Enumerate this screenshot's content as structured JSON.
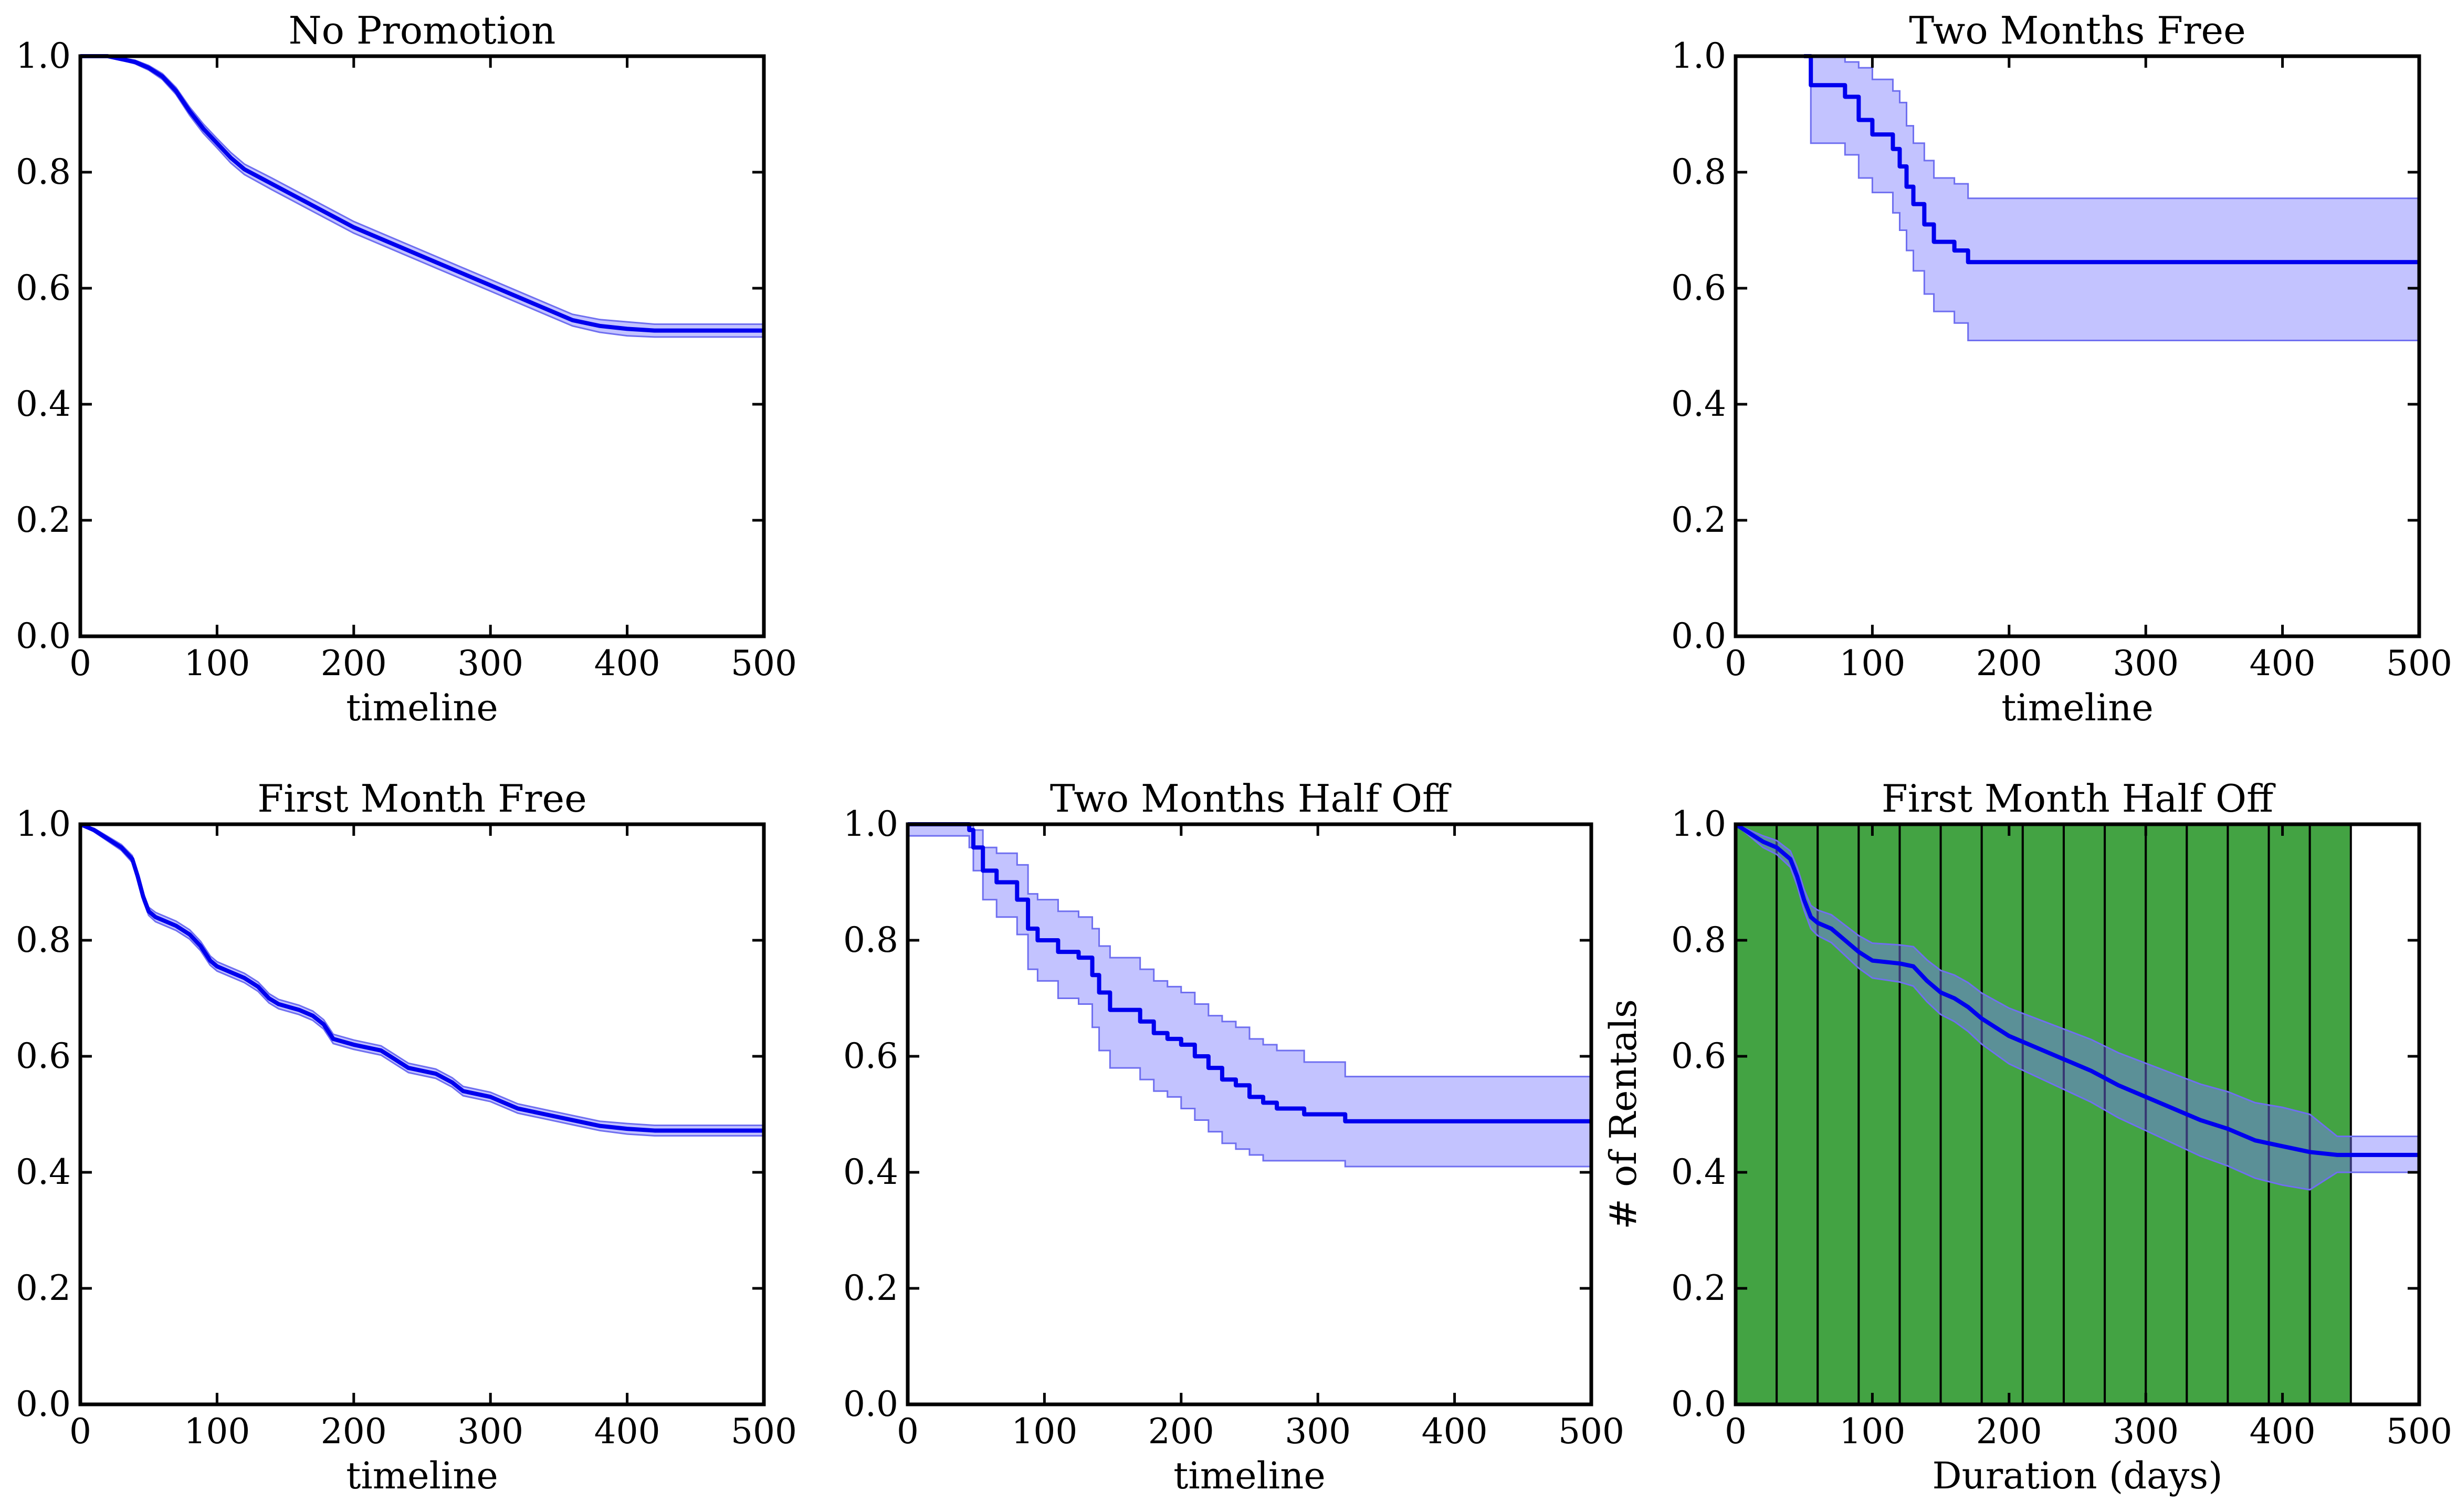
{
  "colors": {
    "line": "#0000ee",
    "band_fill": "#7a7aff",
    "band_opacity": 0.45,
    "band_stroke": "#6f6ff0",
    "bar_fill": "#399e39",
    "bar_opacity": 0.95
  },
  "charts": [
    {
      "id": "no-promotion",
      "title": "No Promotion",
      "xlabel": "timeline",
      "ylabel": "",
      "xlim": [
        0,
        500
      ],
      "ylim": [
        0.0,
        1.0
      ],
      "xticks": [
        "0",
        "100",
        "200",
        "300",
        "400",
        "500"
      ],
      "yticks": [
        "0.0",
        "0.2",
        "0.4",
        "0.6",
        "0.8",
        "1.0"
      ],
      "series": [
        {
          "step": false,
          "x": [
            0,
            20,
            30,
            40,
            50,
            60,
            70,
            80,
            90,
            100,
            110,
            120,
            140,
            160,
            180,
            200,
            220,
            240,
            260,
            280,
            300,
            320,
            340,
            360,
            380,
            400,
            420,
            440,
            460,
            480,
            500
          ],
          "y": [
            1.0,
            1.0,
            0.995,
            0.99,
            0.98,
            0.965,
            0.94,
            0.905,
            0.875,
            0.85,
            0.825,
            0.805,
            0.78,
            0.755,
            0.73,
            0.705,
            0.685,
            0.665,
            0.645,
            0.625,
            0.605,
            0.585,
            0.565,
            0.545,
            0.535,
            0.53,
            0.527,
            0.527,
            0.527,
            0.527,
            0.527
          ],
          "lower": [
            1.0,
            1.0,
            0.993,
            0.987,
            0.976,
            0.96,
            0.934,
            0.898,
            0.867,
            0.842,
            0.816,
            0.796,
            0.77,
            0.745,
            0.72,
            0.695,
            0.675,
            0.655,
            0.635,
            0.615,
            0.595,
            0.575,
            0.555,
            0.535,
            0.524,
            0.518,
            0.516,
            0.516,
            0.516,
            0.516,
            0.516
          ],
          "upper": [
            1.0,
            1.0,
            0.997,
            0.993,
            0.984,
            0.97,
            0.946,
            0.912,
            0.883,
            0.858,
            0.834,
            0.814,
            0.79,
            0.765,
            0.74,
            0.715,
            0.695,
            0.675,
            0.655,
            0.635,
            0.615,
            0.595,
            0.575,
            0.555,
            0.546,
            0.542,
            0.538,
            0.538,
            0.538,
            0.538,
            0.538
          ]
        }
      ]
    },
    {
      "id": "two-months-free",
      "title": "Two Months Free",
      "xlabel": "timeline",
      "ylabel": "",
      "xlim": [
        0,
        500
      ],
      "ylim": [
        0.0,
        1.0
      ],
      "xticks": [
        "0",
        "100",
        "200",
        "300",
        "400",
        "500"
      ],
      "yticks": [
        "0.0",
        "0.2",
        "0.4",
        "0.6",
        "0.8",
        "1.0"
      ],
      "series": [
        {
          "step": true,
          "x": [
            50,
            55,
            80,
            90,
            100,
            115,
            120,
            125,
            130,
            138,
            145,
            160,
            170,
            500
          ],
          "y": [
            1.0,
            0.95,
            0.93,
            0.89,
            0.865,
            0.84,
            0.81,
            0.775,
            0.745,
            0.71,
            0.68,
            0.665,
            0.645,
            0.645
          ],
          "lower": [
            1.0,
            0.85,
            0.83,
            0.79,
            0.765,
            0.73,
            0.7,
            0.665,
            0.63,
            0.59,
            0.56,
            0.54,
            0.51,
            0.51
          ],
          "upper": [
            1.0,
            1.0,
            0.99,
            0.98,
            0.96,
            0.94,
            0.92,
            0.88,
            0.85,
            0.82,
            0.79,
            0.78,
            0.755,
            0.755
          ]
        }
      ]
    },
    {
      "id": "first-month-free",
      "title": "First Month Free",
      "xlabel": "timeline",
      "ylabel": "",
      "xlim": [
        0,
        500
      ],
      "ylim": [
        0.0,
        1.0
      ],
      "xticks": [
        "0",
        "100",
        "200",
        "300",
        "400",
        "500"
      ],
      "yticks": [
        "0.0",
        "0.2",
        "0.4",
        "0.6",
        "0.8",
        "1.0"
      ],
      "series": [
        {
          "step": false,
          "x": [
            0,
            10,
            20,
            30,
            38,
            42,
            46,
            50,
            55,
            60,
            70,
            80,
            88,
            95,
            100,
            110,
            120,
            130,
            138,
            145,
            160,
            170,
            178,
            185,
            200,
            220,
            230,
            240,
            260,
            272,
            280,
            300,
            310,
            320,
            340,
            360,
            380,
            400,
            420,
            440,
            460,
            480,
            500
          ],
          "y": [
            1.0,
            0.99,
            0.975,
            0.96,
            0.94,
            0.91,
            0.875,
            0.85,
            0.84,
            0.835,
            0.825,
            0.81,
            0.79,
            0.765,
            0.755,
            0.745,
            0.735,
            0.72,
            0.7,
            0.69,
            0.68,
            0.67,
            0.655,
            0.63,
            0.62,
            0.61,
            0.595,
            0.58,
            0.57,
            0.555,
            0.54,
            0.53,
            0.52,
            0.51,
            0.5,
            0.49,
            0.48,
            0.475,
            0.472,
            0.472,
            0.472,
            0.472,
            0.472
          ],
          "lower": [
            1.0,
            0.987,
            0.971,
            0.955,
            0.934,
            0.904,
            0.868,
            0.843,
            0.832,
            0.827,
            0.817,
            0.802,
            0.782,
            0.757,
            0.747,
            0.737,
            0.727,
            0.712,
            0.692,
            0.682,
            0.672,
            0.662,
            0.647,
            0.622,
            0.612,
            0.602,
            0.587,
            0.572,
            0.562,
            0.547,
            0.532,
            0.522,
            0.512,
            0.502,
            0.492,
            0.482,
            0.472,
            0.466,
            0.463,
            0.463,
            0.463,
            0.463,
            0.463
          ],
          "upper": [
            1.0,
            0.993,
            0.979,
            0.965,
            0.946,
            0.916,
            0.882,
            0.857,
            0.848,
            0.843,
            0.833,
            0.818,
            0.798,
            0.773,
            0.763,
            0.753,
            0.743,
            0.728,
            0.708,
            0.698,
            0.688,
            0.678,
            0.663,
            0.638,
            0.628,
            0.618,
            0.603,
            0.588,
            0.578,
            0.563,
            0.548,
            0.538,
            0.528,
            0.518,
            0.508,
            0.498,
            0.488,
            0.484,
            0.481,
            0.481,
            0.481,
            0.481,
            0.481
          ]
        }
      ]
    },
    {
      "id": "two-months-half-off",
      "title": "Two Months Half Off",
      "xlabel": "timeline",
      "ylabel": "",
      "xlim": [
        0,
        500
      ],
      "ylim": [
        0.0,
        1.0
      ],
      "xticks": [
        "0",
        "100",
        "200",
        "300",
        "400",
        "500"
      ],
      "yticks": [
        "0.0",
        "0.2",
        "0.4",
        "0.6",
        "0.8",
        "1.0"
      ],
      "series": [
        {
          "step": true,
          "x": [
            0,
            45,
            48,
            55,
            65,
            80,
            88,
            95,
            110,
            125,
            135,
            140,
            148,
            170,
            180,
            190,
            200,
            210,
            220,
            230,
            240,
            250,
            260,
            270,
            290,
            320,
            500
          ],
          "y": [
            1.0,
            0.99,
            0.96,
            0.92,
            0.9,
            0.87,
            0.82,
            0.8,
            0.78,
            0.77,
            0.74,
            0.71,
            0.68,
            0.66,
            0.64,
            0.63,
            0.62,
            0.6,
            0.58,
            0.56,
            0.55,
            0.53,
            0.52,
            0.51,
            0.5,
            0.488,
            0.488
          ],
          "lower": [
            0.98,
            0.96,
            0.92,
            0.87,
            0.84,
            0.81,
            0.75,
            0.73,
            0.7,
            0.69,
            0.65,
            0.61,
            0.58,
            0.56,
            0.54,
            0.53,
            0.51,
            0.49,
            0.47,
            0.45,
            0.44,
            0.43,
            0.42,
            0.42,
            0.42,
            0.41,
            0.41
          ],
          "upper": [
            1.0,
            1.0,
            0.99,
            0.96,
            0.95,
            0.93,
            0.88,
            0.87,
            0.85,
            0.84,
            0.82,
            0.79,
            0.77,
            0.75,
            0.73,
            0.72,
            0.71,
            0.69,
            0.67,
            0.66,
            0.65,
            0.63,
            0.62,
            0.61,
            0.59,
            0.565,
            0.565
          ]
        }
      ]
    },
    {
      "id": "first-month-half-off",
      "title": "First Month Half Off",
      "xlabel": "Duration (days)",
      "ylabel": "# of Rentals",
      "xlim": [
        0,
        500
      ],
      "ylim": [
        0.0,
        1.0
      ],
      "xticks": [
        "0",
        "100",
        "200",
        "300",
        "400",
        "500"
      ],
      "yticks": [
        "0.0",
        "0.2",
        "0.4",
        "0.6",
        "0.8",
        "1.0"
      ],
      "bars": {
        "edges": [
          0,
          30,
          60,
          90,
          120,
          150,
          180,
          210,
          240,
          270,
          300,
          330,
          360,
          390,
          420,
          450
        ],
        "height": 1.0
      },
      "series": [
        {
          "step": false,
          "x": [
            0,
            20,
            30,
            40,
            45,
            50,
            55,
            60,
            70,
            80,
            90,
            100,
            120,
            130,
            140,
            150,
            160,
            170,
            180,
            190,
            200,
            220,
            240,
            260,
            280,
            300,
            320,
            340,
            360,
            380,
            400,
            420,
            440,
            450,
            460,
            480,
            500
          ],
          "y": [
            1.0,
            0.97,
            0.96,
            0.94,
            0.91,
            0.87,
            0.84,
            0.83,
            0.82,
            0.8,
            0.78,
            0.765,
            0.76,
            0.755,
            0.73,
            0.71,
            0.7,
            0.685,
            0.665,
            0.65,
            0.635,
            0.615,
            0.595,
            0.575,
            0.55,
            0.53,
            0.51,
            0.49,
            0.475,
            0.455,
            0.445,
            0.435,
            0.43,
            0.43,
            0.43,
            0.43,
            0.43
          ],
          "lower": [
            1.0,
            0.96,
            0.948,
            0.926,
            0.894,
            0.852,
            0.82,
            0.808,
            0.796,
            0.774,
            0.752,
            0.735,
            0.728,
            0.721,
            0.694,
            0.672,
            0.66,
            0.643,
            0.621,
            0.604,
            0.587,
            0.565,
            0.543,
            0.521,
            0.494,
            0.472,
            0.45,
            0.428,
            0.411,
            0.39,
            0.378,
            0.37,
            0.4,
            0.4,
            0.4,
            0.4,
            0.4
          ],
          "upper": [
            1.0,
            0.98,
            0.972,
            0.954,
            0.926,
            0.888,
            0.86,
            0.852,
            0.844,
            0.826,
            0.808,
            0.795,
            0.792,
            0.789,
            0.766,
            0.748,
            0.74,
            0.727,
            0.709,
            0.696,
            0.683,
            0.665,
            0.647,
            0.629,
            0.606,
            0.588,
            0.57,
            0.552,
            0.539,
            0.52,
            0.512,
            0.5,
            0.462,
            0.462,
            0.462,
            0.462,
            0.462
          ]
        }
      ]
    }
  ]
}
